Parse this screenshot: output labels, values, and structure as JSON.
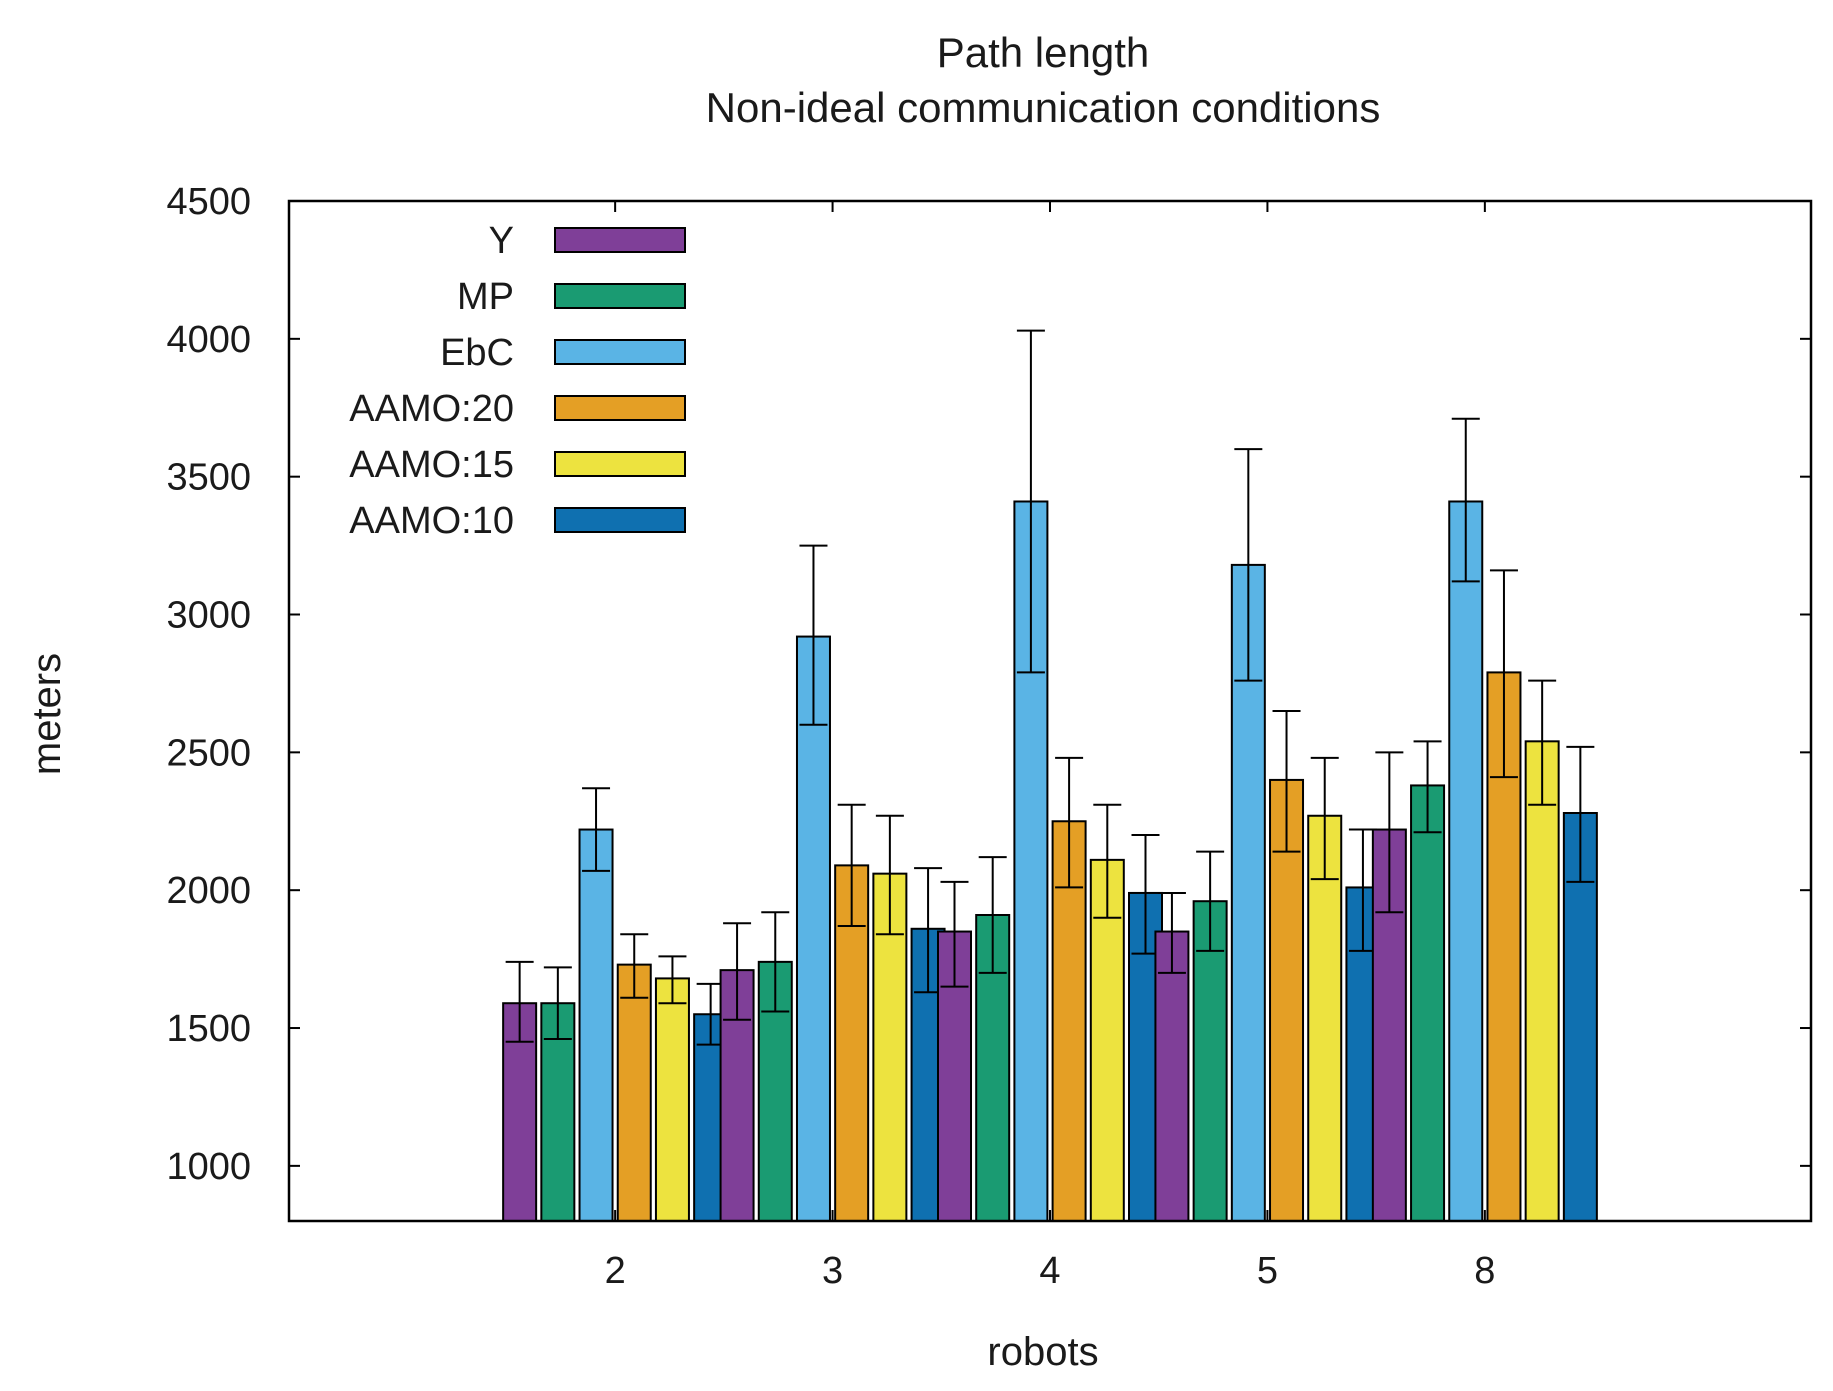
{
  "chart_data": {
    "type": "bar",
    "title": "Path length",
    "subtitle": "Non-ideal communication conditions",
    "xlabel": "robots",
    "ylabel": "meters",
    "categories": [
      "2",
      "3",
      "4",
      "5",
      "8"
    ],
    "ylim": [
      800,
      4500
    ],
    "yticks": [
      1000,
      1500,
      2000,
      2500,
      3000,
      3500,
      4000,
      4500
    ],
    "grid": false,
    "legend_position": "top-left",
    "series": [
      {
        "name": "Y",
        "color": "#7f3f98",
        "values": [
          1590,
          1710,
          1850,
          1850,
          2220
        ],
        "err_low": [
          1450,
          1530,
          1650,
          1700,
          1920
        ],
        "err_high": [
          1740,
          1880,
          2030,
          1990,
          2500
        ]
      },
      {
        "name": "MP",
        "color": "#1a9b72",
        "values": [
          1590,
          1740,
          1910,
          1960,
          2380
        ],
        "err_low": [
          1460,
          1560,
          1700,
          1780,
          2210
        ],
        "err_high": [
          1720,
          1920,
          2120,
          2140,
          2540
        ]
      },
      {
        "name": "EbC",
        "color": "#5ab4e5",
        "values": [
          2220,
          2920,
          3410,
          3180,
          3410
        ],
        "err_low": [
          2070,
          2600,
          2790,
          2760,
          3120
        ],
        "err_high": [
          2370,
          3250,
          4030,
          3600,
          3710
        ]
      },
      {
        "name": "AAMO:20",
        "color": "#e49f25",
        "values": [
          1730,
          2090,
          2250,
          2400,
          2790
        ],
        "err_low": [
          1610,
          1870,
          2010,
          2140,
          2410
        ],
        "err_high": [
          1840,
          2310,
          2480,
          2650,
          3160
        ]
      },
      {
        "name": "AAMO:15",
        "color": "#ede33f",
        "values": [
          1680,
          2060,
          2110,
          2270,
          2540
        ],
        "err_low": [
          1590,
          1840,
          1900,
          2040,
          2310
        ],
        "err_high": [
          1760,
          2270,
          2310,
          2480,
          2760
        ]
      },
      {
        "name": "AAMO:10",
        "color": "#0f70b0",
        "values": [
          1550,
          1860,
          1990,
          2010,
          2280
        ],
        "err_low": [
          1440,
          1630,
          1770,
          1780,
          2030
        ],
        "err_high": [
          1660,
          2080,
          2200,
          2220,
          2520
        ]
      }
    ]
  }
}
